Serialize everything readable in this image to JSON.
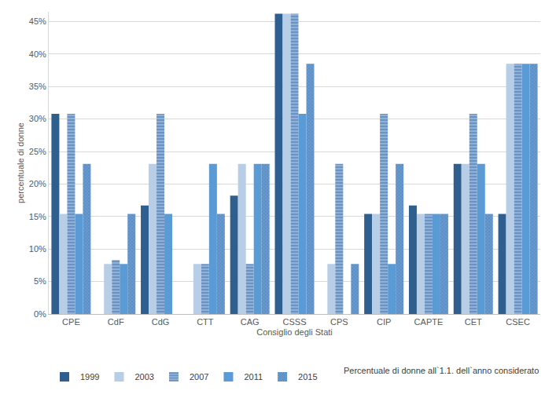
{
  "chart_data": {
    "type": "bar",
    "x_label": "Consiglio degli Stati",
    "y_label": "percentuale di donne",
    "annotations": [
      "Percentuale di donne all`1.1. dell`anno considerato"
    ],
    "categories": [
      "CPE",
      "CdF",
      "CdG",
      "CTT",
      "CAG",
      "CSSS",
      "CPS",
      "CIP",
      "CAPTE",
      "CET",
      "CSEC"
    ],
    "series": [
      {
        "name": "1999",
        "color": "#2f5f8e",
        "values": [
          30.8,
          0,
          16.7,
          0,
          18.2,
          46.2,
          0,
          15.4,
          16.7,
          23.1,
          15.4
        ]
      },
      {
        "name": "2003",
        "color": "#b8cde6",
        "values": [
          15.4,
          7.7,
          23.1,
          7.7,
          23.1,
          46.2,
          7.7,
          15.4,
          15.4,
          23.1,
          38.5
        ]
      },
      {
        "name": "2007",
        "color": "#8fb1d9",
        "values": [
          30.8,
          8.3,
          30.8,
          7.7,
          7.7,
          46.2,
          23.1,
          30.8,
          15.4,
          30.8,
          38.5
        ]
      },
      {
        "name": "2011",
        "color": "#5b9bd5",
        "values": [
          15.4,
          7.7,
          15.4,
          23.1,
          23.1,
          30.8,
          0,
          7.7,
          15.4,
          23.1,
          38.5
        ]
      },
      {
        "name": "2015",
        "color": "#6a9bd0",
        "values": [
          23.1,
          15.4,
          0,
          15.4,
          23.1,
          38.5,
          7.7,
          23.1,
          15.4,
          15.4,
          38.5
        ]
      }
    ],
    "ylim": [
      0,
      46.5
    ],
    "yticks": [
      {
        "value": 0,
        "label": "0%"
      },
      {
        "value": 5,
        "label": "5%"
      },
      {
        "value": 10,
        "label": "10%"
      },
      {
        "value": 15,
        "label": "15%"
      },
      {
        "value": 20,
        "label": "20%"
      },
      {
        "value": 25,
        "label": "25%"
      },
      {
        "value": 30,
        "label": "30%"
      },
      {
        "value": 35,
        "label": "35%"
      },
      {
        "value": 40,
        "label": "40%"
      },
      {
        "value": 45,
        "label": "45%"
      }
    ],
    "grid": true,
    "legend": "bottom-left"
  }
}
